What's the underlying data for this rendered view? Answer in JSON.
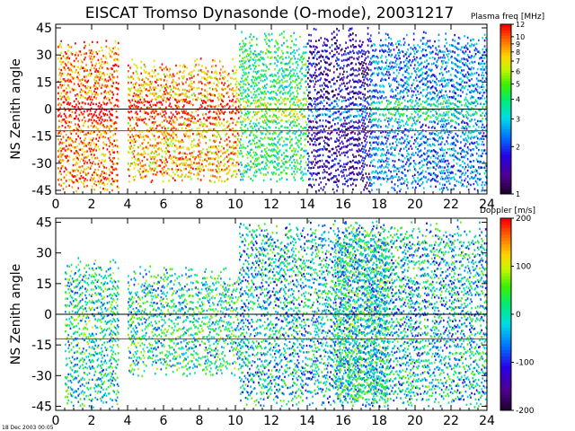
{
  "title": "EISCAT Tromso Dynasonde (O-mode),  20031217",
  "footer": "18 Dec 2003 00:05",
  "chart_data": [
    {
      "type": "heatmap",
      "ylabel": "NS Zenith angle",
      "xlim": [
        0,
        24
      ],
      "ylim": [
        -47,
        47
      ],
      "xticks": [
        0,
        2,
        4,
        6,
        8,
        10,
        12,
        14,
        16,
        18,
        20,
        22,
        24
      ],
      "yticks": [
        -45,
        -30,
        -15,
        0,
        15,
        30,
        45
      ],
      "reference_lines": [
        {
          "y": 0,
          "color": "#000000"
        },
        {
          "y": -12,
          "color": "#dd2200"
        }
      ],
      "colorbar": {
        "label": "Plasma freq [MHz]",
        "scale": "log",
        "range": [
          1,
          12
        ],
        "ticks": [
          1,
          2,
          3,
          4,
          5,
          6,
          7,
          8,
          9,
          10,
          12
        ]
      },
      "activity": [
        {
          "start": 0.1,
          "end": 3.5,
          "ymin": -45,
          "ymax": 40,
          "level": 0.9
        },
        {
          "start": 4.0,
          "end": 10.2,
          "ymin": -40,
          "ymax": 30,
          "level": 0.85
        },
        {
          "start": 10.2,
          "end": 14.0,
          "ymin": -40,
          "ymax": 45,
          "level": 0.55
        },
        {
          "start": 14.0,
          "end": 17.5,
          "ymin": -45,
          "ymax": 47,
          "level": 0.15
        },
        {
          "start": 17.5,
          "end": 24.0,
          "ymin": -45,
          "ymax": 45,
          "level": 0.35
        }
      ]
    },
    {
      "type": "heatmap",
      "ylabel": "NS Zenith angle",
      "xlim": [
        0,
        24
      ],
      "ylim": [
        -47,
        47
      ],
      "xticks": [
        0,
        2,
        4,
        6,
        8,
        10,
        12,
        14,
        16,
        18,
        20,
        22,
        24
      ],
      "yticks": [
        -45,
        -30,
        -15,
        0,
        15,
        30,
        45
      ],
      "reference_lines": [
        {
          "y": 0,
          "color": "#000000"
        },
        {
          "y": -12,
          "color": "#dd2200"
        }
      ],
      "colorbar": {
        "label": "Doppler [m/s]",
        "scale": "linear",
        "range": [
          -200,
          200
        ],
        "ticks": [
          -200,
          -100,
          0,
          100,
          200
        ]
      },
      "activity": [
        {
          "start": 0.5,
          "end": 3.5,
          "ymin": -45,
          "ymax": 30,
          "level": 0.5
        },
        {
          "start": 4.0,
          "end": 10.2,
          "ymin": -30,
          "ymax": 25,
          "level": 0.5
        },
        {
          "start": 10.2,
          "end": 24.0,
          "ymin": -45,
          "ymax": 47,
          "level": 0.45
        },
        {
          "start": 15.5,
          "end": 18.5,
          "ymin": -45,
          "ymax": 47,
          "level": 0.5
        }
      ]
    }
  ]
}
